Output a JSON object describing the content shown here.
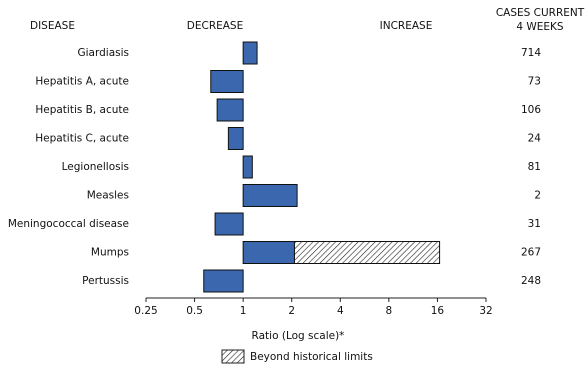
{
  "chart_data": {
    "type": "bar",
    "orientation": "horizontal",
    "log_base": 2,
    "headers": {
      "disease": "DISEASE",
      "decrease": "DECREASE",
      "increase": "INCREASE",
      "cases": [
        "CASES CURRENT",
        "4 WEEKS"
      ]
    },
    "categories": [
      "Giardiasis",
      "Hepatitis A, acute",
      "Hepatitis B, acute",
      "Hepatitis C, acute",
      "Legionellosis",
      "Measles",
      "Meningococcal disease",
      "Mumps",
      "Pertussis"
    ],
    "values": [
      1.22,
      0.63,
      0.69,
      0.81,
      1.14,
      2.16,
      0.67,
      16.5,
      0.57
    ],
    "historical_limit": [
      null,
      null,
      null,
      null,
      null,
      null,
      null,
      2.08,
      null
    ],
    "cases": [
      714,
      73,
      106,
      24,
      81,
      2,
      31,
      267,
      248
    ],
    "color": "#3a67ad",
    "xlim": [
      0.25,
      32
    ],
    "xticks": [
      0.25,
      0.5,
      1,
      2,
      4,
      8,
      16,
      32
    ],
    "xlabel": "Ratio (Log scale)*",
    "legend": "Beyond historical limits"
  }
}
